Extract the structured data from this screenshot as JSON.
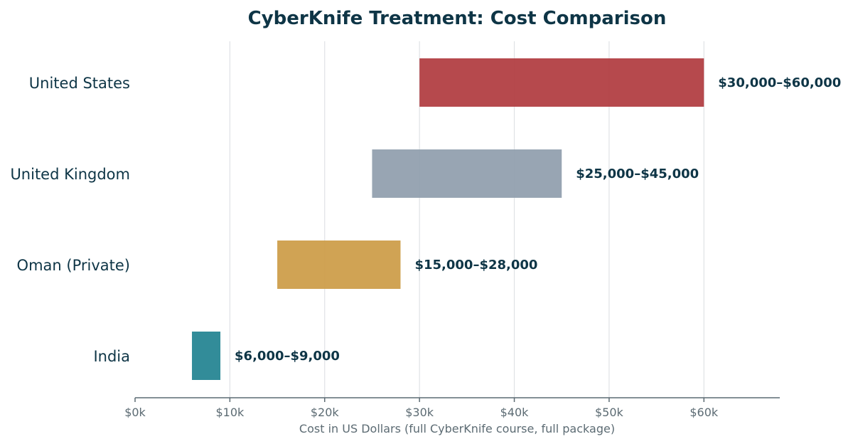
{
  "chart_data": {
    "type": "bar",
    "orientation": "horizontal",
    "title": "CyberKnife Treatment: Cost Comparison",
    "xlabel": "Cost in US Dollars (full CyberKnife course, full package)",
    "ylabel": "",
    "xlim": [
      0,
      68000
    ],
    "xticks": [
      0,
      10000,
      20000,
      30000,
      40000,
      50000,
      60000
    ],
    "xtick_labels": [
      "$0k",
      "$10k",
      "$20k",
      "$30k",
      "$40k",
      "$50k",
      "$60k"
    ],
    "grid": "vertical",
    "categories": [
      "United States",
      "United Kingdom",
      "Oman (Private)",
      "India"
    ],
    "ranges": [
      {
        "category": "United States",
        "low": 30000,
        "high": 60000,
        "label": "$30,000–$60,000",
        "color": "#b03a3e"
      },
      {
        "category": "United Kingdom",
        "low": 25000,
        "high": 45000,
        "label": "$25,000–$45,000",
        "color": "#8f9dac"
      },
      {
        "category": "Oman (Private)",
        "low": 15000,
        "high": 28000,
        "label": "$15,000–$28,000",
        "color": "#cc9b45"
      },
      {
        "category": "India",
        "low": 6000,
        "high": 9000,
        "label": "$6,000–$9,000",
        "color": "#218290"
      }
    ]
  }
}
